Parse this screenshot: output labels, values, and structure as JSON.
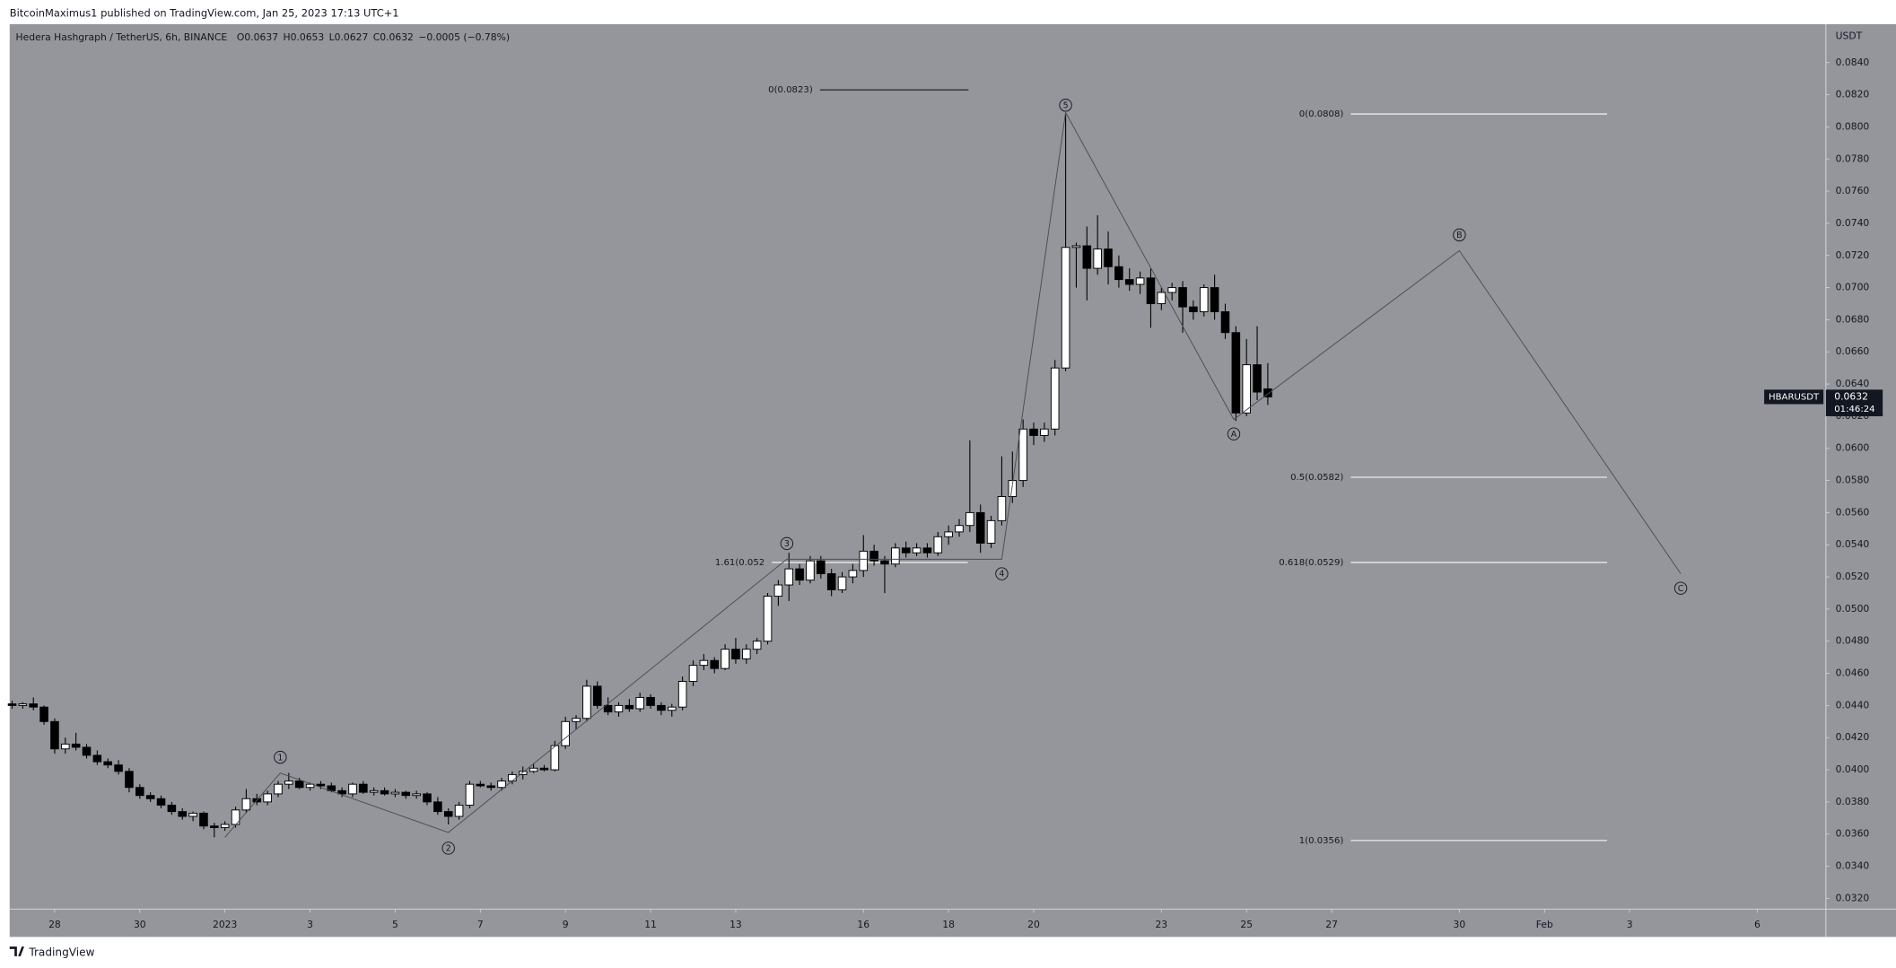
{
  "published_by": "BitcoinMaximus1 published on TradingView.com, Jan 25, 2023 17:13 UTC+1",
  "footer": "TradingView",
  "chart_data": {
    "type": "candlestick",
    "symbol": "HBARUSDT",
    "countdown": "01:46:24",
    "axis_unit": "USDT",
    "symbol_header": {
      "name": "Hedera Hashgraph / TetherUS, 6h, BINANCE",
      "ohlc": [
        {
          "key": "O",
          "value": "0.0637"
        },
        {
          "key": "H",
          "value": "0.0653"
        },
        {
          "key": "L",
          "value": "0.0627"
        },
        {
          "key": "C",
          "value": "0.0632"
        }
      ],
      "change": "−0.0005 (−0.78%)"
    },
    "xlim": [
      -5.057,
      37.61
    ],
    "ylim": [
      0.03133,
      0.08639
    ],
    "xticks": [
      {
        "value": -4,
        "label": "28"
      },
      {
        "value": -2,
        "label": "30"
      },
      {
        "value": 0,
        "label": "2023"
      },
      {
        "value": 2,
        "label": "3"
      },
      {
        "value": 4,
        "label": "5"
      },
      {
        "value": 6,
        "label": "7"
      },
      {
        "value": 8,
        "label": "9"
      },
      {
        "value": 10,
        "label": "11"
      },
      {
        "value": 12,
        "label": "13"
      },
      {
        "value": 15,
        "label": "16"
      },
      {
        "value": 17,
        "label": "18"
      },
      {
        "value": 19,
        "label": "20"
      },
      {
        "value": 22,
        "label": "23"
      },
      {
        "value": 24,
        "label": "25"
      },
      {
        "value": 26,
        "label": "27"
      },
      {
        "value": 29,
        "label": "30"
      },
      {
        "value": 31,
        "label": "Feb"
      },
      {
        "value": 33,
        "label": "3"
      },
      {
        "value": 36,
        "label": "6"
      }
    ],
    "yticks": [
      {
        "value": 0.032,
        "label": "0.0320"
      },
      {
        "value": 0.034,
        "label": "0.0340"
      },
      {
        "value": 0.036,
        "label": "0.0360"
      },
      {
        "value": 0.038,
        "label": "0.0380"
      },
      {
        "value": 0.04,
        "label": "0.0400"
      },
      {
        "value": 0.042,
        "label": "0.0420"
      },
      {
        "value": 0.044,
        "label": "0.0440"
      },
      {
        "value": 0.046,
        "label": "0.0460"
      },
      {
        "value": 0.048,
        "label": "0.0480"
      },
      {
        "value": 0.05,
        "label": "0.0500"
      },
      {
        "value": 0.052,
        "label": "0.0520"
      },
      {
        "value": 0.054,
        "label": "0.0540"
      },
      {
        "value": 0.056,
        "label": "0.0560"
      },
      {
        "value": 0.058,
        "label": "0.0580"
      },
      {
        "value": 0.06,
        "label": "0.0600"
      },
      {
        "value": 0.062,
        "label": "0.0620"
      },
      {
        "value": 0.064,
        "label": "0.0640"
      },
      {
        "value": 0.066,
        "label": "0.0660"
      },
      {
        "value": 0.068,
        "label": "0.0680"
      },
      {
        "value": 0.07,
        "label": "0.0700"
      },
      {
        "value": 0.072,
        "label": "0.0720"
      },
      {
        "value": 0.074,
        "label": "0.0740"
      },
      {
        "value": 0.076,
        "label": "0.0760"
      },
      {
        "value": 0.078,
        "label": "0.0780"
      },
      {
        "value": 0.08,
        "label": "0.0800"
      },
      {
        "value": 0.082,
        "label": "0.0820"
      },
      {
        "value": 0.084,
        "label": "0.0840"
      }
    ],
    "up_color": "#ffffff",
    "down_color": "#000000",
    "background": "#94969b",
    "x": [
      -5,
      -4.75,
      -4.5,
      -4.25,
      -4,
      -3.75,
      -3.5,
      -3.25,
      -3,
      -2.75,
      -2.5,
      -2.25,
      -2,
      -1.75,
      -1.5,
      -1.25,
      -1,
      -0.75,
      -0.5,
      -0.25,
      0,
      0.25,
      0.5,
      0.75,
      1,
      1.25,
      1.5,
      1.75,
      2,
      2.25,
      2.5,
      2.75,
      3,
      3.25,
      3.5,
      3.75,
      4,
      4.25,
      4.5,
      4.75,
      5,
      5.25,
      5.5,
      5.75,
      6,
      6.25,
      6.5,
      6.75,
      7,
      7.25,
      7.5,
      7.75,
      8,
      8.25,
      8.5,
      8.75,
      9,
      9.25,
      9.5,
      9.75,
      10,
      10.25,
      10.5,
      10.75,
      11,
      11.25,
      11.5,
      11.75,
      12,
      12.25,
      12.5,
      12.75,
      13,
      13.25,
      13.5,
      13.75,
      14,
      14.25,
      14.5,
      14.75,
      15,
      15.25,
      15.5,
      15.75,
      16,
      16.25,
      16.5,
      16.75,
      17,
      17.25,
      17.5,
      17.75,
      18,
      18.25,
      18.5,
      18.75,
      19,
      19.25,
      19.5,
      19.75,
      20,
      20.25,
      20.5,
      20.75,
      21,
      21.25,
      21.5,
      21.75,
      22,
      22.25,
      22.5,
      22.75,
      23,
      23.25,
      23.5,
      23.75,
      24,
      24.25,
      24.5
    ],
    "open": [
      0.0441,
      0.044,
      0.0441,
      0.0439,
      0.043,
      0.0413,
      0.0416,
      0.0414,
      0.0409,
      0.0405,
      0.0403,
      0.0399,
      0.0389,
      0.0384,
      0.0382,
      0.0378,
      0.0374,
      0.0371,
      0.0373,
      0.0365,
      0.0364,
      0.0366,
      0.0375,
      0.0382,
      0.038,
      0.0385,
      0.0391,
      0.0393,
      0.0389,
      0.0391,
      0.039,
      0.0387,
      0.0385,
      0.0391,
      0.0386,
      0.0387,
      0.0385,
      0.0386,
      0.0384,
      0.0385,
      0.038,
      0.0374,
      0.0371,
      0.0378,
      0.0391,
      0.039,
      0.0389,
      0.0393,
      0.0397,
      0.0399,
      0.0401,
      0.04,
      0.0415,
      0.043,
      0.0432,
      0.0452,
      0.044,
      0.0436,
      0.044,
      0.0438,
      0.0445,
      0.044,
      0.0437,
      0.0439,
      0.0455,
      0.0465,
      0.0468,
      0.0463,
      0.0475,
      0.0469,
      0.0475,
      0.048,
      0.0508,
      0.0515,
      0.0525,
      0.0518,
      0.053,
      0.0522,
      0.0512,
      0.052,
      0.0524,
      0.0536,
      0.053,
      0.0528,
      0.0538,
      0.0535,
      0.0538,
      0.0535,
      0.0545,
      0.0548,
      0.0552,
      0.056,
      0.0541,
      0.0555,
      0.057,
      0.058,
      0.0612,
      0.0608,
      0.0612,
      0.065,
      0.0725,
      0.0726,
      0.0712,
      0.0724,
      0.0713,
      0.0705,
      0.0702,
      0.0706,
      0.069,
      0.0697,
      0.07,
      0.0688,
      0.0685,
      0.07,
      0.0685,
      0.0672,
      0.0622,
      0.0652,
      0.0637
    ],
    "high": [
      0.0443,
      0.0442,
      0.0445,
      0.044,
      0.0432,
      0.042,
      0.0423,
      0.0416,
      0.0412,
      0.0407,
      0.0406,
      0.0401,
      0.0391,
      0.0386,
      0.0384,
      0.038,
      0.0376,
      0.0374,
      0.0374,
      0.0367,
      0.0368,
      0.0377,
      0.0388,
      0.0385,
      0.0387,
      0.0393,
      0.0398,
      0.0395,
      0.0392,
      0.0393,
      0.0392,
      0.0389,
      0.0392,
      0.0393,
      0.0389,
      0.0389,
      0.0388,
      0.0387,
      0.0387,
      0.0386,
      0.0383,
      0.0376,
      0.038,
      0.0393,
      0.0393,
      0.0392,
      0.0395,
      0.0399,
      0.0402,
      0.0404,
      0.0403,
      0.0418,
      0.0433,
      0.0434,
      0.0456,
      0.0455,
      0.0445,
      0.0442,
      0.0444,
      0.0448,
      0.0447,
      0.0442,
      0.0441,
      0.0458,
      0.0468,
      0.0472,
      0.047,
      0.0478,
      0.0482,
      0.0478,
      0.0482,
      0.051,
      0.0518,
      0.0535,
      0.0528,
      0.0533,
      0.0533,
      0.0525,
      0.0523,
      0.0528,
      0.0546,
      0.054,
      0.0533,
      0.0541,
      0.0542,
      0.0541,
      0.0541,
      0.0548,
      0.0552,
      0.0556,
      0.0605,
      0.0565,
      0.0558,
      0.0595,
      0.0598,
      0.0618,
      0.0616,
      0.0616,
      0.0655,
      0.0808,
      0.0728,
      0.0738,
      0.0745,
      0.0735,
      0.072,
      0.0712,
      0.071,
      0.0712,
      0.07,
      0.0703,
      0.0704,
      0.0692,
      0.0702,
      0.0708,
      0.069,
      0.0676,
      0.0668,
      0.0676,
      0.0653
    ],
    "low": [
      0.0438,
      0.0438,
      0.0437,
      0.0428,
      0.041,
      0.041,
      0.0412,
      0.0407,
      0.0403,
      0.0401,
      0.0397,
      0.0386,
      0.0382,
      0.038,
      0.0376,
      0.0372,
      0.0369,
      0.0368,
      0.0363,
      0.0358,
      0.0362,
      0.0364,
      0.0373,
      0.0378,
      0.0378,
      0.0383,
      0.0388,
      0.0388,
      0.0387,
      0.0388,
      0.0386,
      0.0383,
      0.0383,
      0.0385,
      0.0384,
      0.0384,
      0.0383,
      0.0382,
      0.0382,
      0.0378,
      0.0372,
      0.0366,
      0.0369,
      0.0376,
      0.0389,
      0.0387,
      0.0387,
      0.0391,
      0.0394,
      0.0398,
      0.0399,
      0.0399,
      0.0413,
      0.0425,
      0.043,
      0.0438,
      0.0434,
      0.0433,
      0.0436,
      0.0436,
      0.0438,
      0.0434,
      0.0433,
      0.0437,
      0.0452,
      0.0462,
      0.046,
      0.0462,
      0.0466,
      0.0466,
      0.0472,
      0.0478,
      0.0502,
      0.0505,
      0.0515,
      0.0516,
      0.0519,
      0.0508,
      0.051,
      0.0516,
      0.052,
      0.0527,
      0.051,
      0.0526,
      0.0532,
      0.0533,
      0.0532,
      0.0533,
      0.054,
      0.0545,
      0.0548,
      0.0535,
      0.0538,
      0.0552,
      0.0566,
      0.0576,
      0.0602,
      0.0604,
      0.0608,
      0.0648,
      0.07,
      0.0692,
      0.0708,
      0.0702,
      0.07,
      0.0698,
      0.0696,
      0.0675,
      0.0686,
      0.0692,
      0.0672,
      0.068,
      0.0682,
      0.068,
      0.0668,
      0.0617,
      0.062,
      0.063,
      0.0627
    ],
    "close": [
      0.044,
      0.0441,
      0.0439,
      0.043,
      0.0413,
      0.0416,
      0.0414,
      0.0409,
      0.0405,
      0.0403,
      0.0399,
      0.0389,
      0.0384,
      0.0382,
      0.0378,
      0.0374,
      0.0371,
      0.0373,
      0.0365,
      0.0364,
      0.0366,
      0.0375,
      0.0382,
      0.038,
      0.0385,
      0.0391,
      0.0393,
      0.0389,
      0.0391,
      0.039,
      0.0387,
      0.0385,
      0.0391,
      0.0386,
      0.0387,
      0.0385,
      0.0386,
      0.0384,
      0.0385,
      0.038,
      0.0374,
      0.0371,
      0.0378,
      0.0391,
      0.039,
      0.0389,
      0.0393,
      0.0397,
      0.0399,
      0.0401,
      0.04,
      0.0415,
      0.043,
      0.0432,
      0.0452,
      0.044,
      0.0436,
      0.044,
      0.0438,
      0.0445,
      0.044,
      0.0437,
      0.0439,
      0.0455,
      0.0465,
      0.0468,
      0.0463,
      0.0475,
      0.0469,
      0.0475,
      0.048,
      0.0508,
      0.0515,
      0.0525,
      0.0518,
      0.053,
      0.0522,
      0.0512,
      0.052,
      0.0524,
      0.0536,
      0.053,
      0.0528,
      0.0538,
      0.0535,
      0.0538,
      0.0535,
      0.0545,
      0.0548,
      0.0552,
      0.056,
      0.0541,
      0.0555,
      0.057,
      0.058,
      0.0612,
      0.0608,
      0.0612,
      0.065,
      0.0725,
      0.0726,
      0.0712,
      0.0724,
      0.0713,
      0.0705,
      0.0702,
      0.0706,
      0.069,
      0.0697,
      0.07,
      0.0688,
      0.0685,
      0.07,
      0.0685,
      0.0672,
      0.0622,
      0.0652,
      0.0635,
      0.0632
    ],
    "fib_levels": [
      {
        "label": "0(0.0823)",
        "value": 0.0823
      },
      {
        "label": "0(0.0808)",
        "value": 0.0808
      },
      {
        "label": "0.5(0.0582)",
        "value": 0.0582
      },
      {
        "label": "0.618(0.0529)",
        "value": 0.0529
      },
      {
        "label": "1(0.0356)",
        "value": 0.0356
      },
      {
        "label": "1.61(0.052",
        "value": 0.0529
      }
    ],
    "waves": [
      {
        "label": null,
        "x": 0,
        "y": 0.0358
      },
      {
        "label": "1",
        "x": 1.3,
        "y": 0.0398
      },
      {
        "label": "2",
        "x": 5.25,
        "y": 0.0361
      },
      {
        "label": "3",
        "x": 13.2,
        "y": 0.0531
      },
      {
        "label": "4",
        "x": 18.25,
        "y": 0.0531
      },
      {
        "label": "5",
        "x": 19.75,
        "y": 0.0809
      },
      {
        "label": "A",
        "x": 23.7,
        "y": 0.0618
      },
      {
        "label": "B",
        "x": 29.0,
        "y": 0.0723
      },
      {
        "label": "C",
        "x": 34.2,
        "y": 0.0522
      }
    ]
  }
}
